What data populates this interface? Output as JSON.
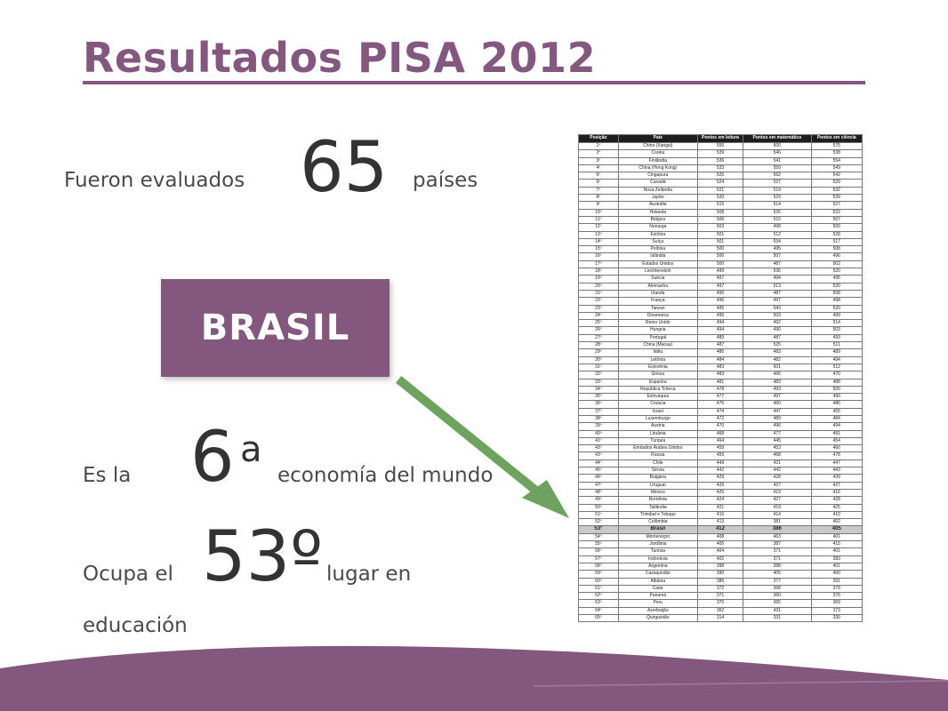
{
  "title": "Resultados PISA 2012",
  "evaluated": {
    "prefix": "Fueron evaluados",
    "number": "65",
    "suffix": "países"
  },
  "badge": {
    "label": "BRASIL"
  },
  "economy": {
    "prefix": "Es la",
    "number": "6",
    "superscript": "a",
    "suffix": "economía del mundo"
  },
  "education": {
    "prefix": "Ocupa el",
    "number": "53º",
    "suffix": "lugar en",
    "suffix_line2": "educación"
  },
  "colors": {
    "accent": "#84577f",
    "arrow": "#6ea35f"
  },
  "ranking": {
    "headers": [
      "Posição",
      "País",
      "Pontos em leitura",
      "Pontos em matemática",
      "Pontos em ciência"
    ],
    "highlight_position": "53º",
    "rows": [
      [
        "1º",
        "China (Xangai)",
        "556",
        "600",
        "575"
      ],
      [
        "2º",
        "Coreia",
        "539",
        "546",
        "538"
      ],
      [
        "3º",
        "Finlândia",
        "536",
        "541",
        "554"
      ],
      [
        "4º",
        "China (Hong Kong)",
        "533",
        "555",
        "549"
      ],
      [
        "5º",
        "Cingapura",
        "526",
        "562",
        "542"
      ],
      [
        "6º",
        "Canadá",
        "524",
        "527",
        "529"
      ],
      [
        "7º",
        "Nova Zelândia",
        "521",
        "519",
        "532"
      ],
      [
        "8º",
        "Japão",
        "520",
        "529",
        "539"
      ],
      [
        "9º",
        "Austrália",
        "515",
        "514",
        "527"
      ],
      [
        "10º",
        "Holanda",
        "508",
        "526",
        "522"
      ],
      [
        "11º",
        "Bélgica",
        "506",
        "515",
        "507"
      ],
      [
        "12º",
        "Noruega",
        "503",
        "498",
        "500"
      ],
      [
        "13º",
        "Estônia",
        "501",
        "512",
        "528"
      ],
      [
        "14º",
        "Suíça",
        "501",
        "534",
        "517"
      ],
      [
        "15º",
        "Polônia",
        "500",
        "495",
        "508"
      ],
      [
        "16º",
        "Islândia",
        "500",
        "507",
        "496"
      ],
      [
        "17º",
        "Estados Unidos",
        "500",
        "487",
        "502"
      ],
      [
        "18º",
        "Liechtenstein",
        "499",
        "536",
        "520"
      ],
      [
        "19º",
        "Suécia",
        "497",
        "494",
        "495"
      ],
      [
        "20º",
        "Alemanha",
        "497",
        "513",
        "520"
      ],
      [
        "21º",
        "Irlanda",
        "496",
        "487",
        "508"
      ],
      [
        "22º",
        "França",
        "496",
        "497",
        "498"
      ],
      [
        "23º",
        "Taiwan",
        "495",
        "543",
        "520"
      ],
      [
        "24º",
        "Dinamarca",
        "495",
        "503",
        "499"
      ],
      [
        "25º",
        "Reino Unido",
        "494",
        "492",
        "514"
      ],
      [
        "26º",
        "Hungria",
        "494",
        "490",
        "503"
      ],
      [
        "27º",
        "Portugal",
        "489",
        "487",
        "493"
      ],
      [
        "28º",
        "China (Macau)",
        "487",
        "525",
        "511"
      ],
      [
        "29º",
        "Itália",
        "486",
        "483",
        "489"
      ],
      [
        "30º",
        "Letônia",
        "484",
        "482",
        "494"
      ],
      [
        "31º",
        "Eslovênia",
        "483",
        "501",
        "512"
      ],
      [
        "32º",
        "Grécia",
        "483",
        "466",
        "470"
      ],
      [
        "33º",
        "Espanha",
        "481",
        "483",
        "488"
      ],
      [
        "34º",
        "República Tcheca",
        "478",
        "493",
        "500"
      ],
      [
        "35º",
        "Eslováquia",
        "477",
        "497",
        "490"
      ],
      [
        "36º",
        "Croácia",
        "476",
        "460",
        "486"
      ],
      [
        "37º",
        "Israel",
        "474",
        "447",
        "455"
      ],
      [
        "38º",
        "Luxemburgo",
        "472",
        "489",
        "484"
      ],
      [
        "39º",
        "Áustria",
        "470",
        "496",
        "494"
      ],
      [
        "40º",
        "Lituânia",
        "468",
        "477",
        "491"
      ],
      [
        "41º",
        "Turquia",
        "464",
        "445",
        "454"
      ],
      [
        "42º",
        "Emirados Árabes Unidos",
        "459",
        "453",
        "466"
      ],
      [
        "43º",
        "Rússia",
        "459",
        "468",
        "478"
      ],
      [
        "44º",
        "Chile",
        "449",
        "421",
        "447"
      ],
      [
        "45º",
        "Sérvia",
        "442",
        "442",
        "443"
      ],
      [
        "46º",
        "Bulgária",
        "429",
        "428",
        "439"
      ],
      [
        "47º",
        "Uruguai",
        "426",
        "427",
        "427"
      ],
      [
        "48º",
        "México",
        "425",
        "419",
        "416"
      ],
      [
        "49º",
        "Romênia",
        "424",
        "427",
        "428"
      ],
      [
        "50º",
        "Tailândia",
        "421",
        "419",
        "425"
      ],
      [
        "51º",
        "Trinidad e Tobago",
        "416",
        "414",
        "410"
      ],
      [
        "52º",
        "Colômbia",
        "413",
        "381",
        "402"
      ],
      [
        "53º",
        "Brasil",
        "412",
        "386",
        "405"
      ],
      [
        "54º",
        "Montenegro",
        "408",
        "463",
        "401"
      ],
      [
        "55º",
        "Jordânia",
        "405",
        "387",
        "415"
      ],
      [
        "56º",
        "Tunísia",
        "404",
        "371",
        "401"
      ],
      [
        "57º",
        "Indonésia",
        "402",
        "371",
        "383"
      ],
      [
        "58º",
        "Argentina",
        "398",
        "388",
        "401"
      ],
      [
        "59º",
        "Cazaquistão",
        "390",
        "405",
        "400"
      ],
      [
        "60º",
        "Albânia",
        "385",
        "377",
        "391"
      ],
      [
        "61º",
        "Catar",
        "372",
        "368",
        "379"
      ],
      [
        "62º",
        "Panamá",
        "371",
        "360",
        "376"
      ],
      [
        "63º",
        "Peru",
        "370",
        "365",
        "369"
      ],
      [
        "64º",
        "Azerbaijão",
        "362",
        "431",
        "373"
      ],
      [
        "65º",
        "Quirguistão",
        "314",
        "331",
        "330"
      ]
    ]
  }
}
